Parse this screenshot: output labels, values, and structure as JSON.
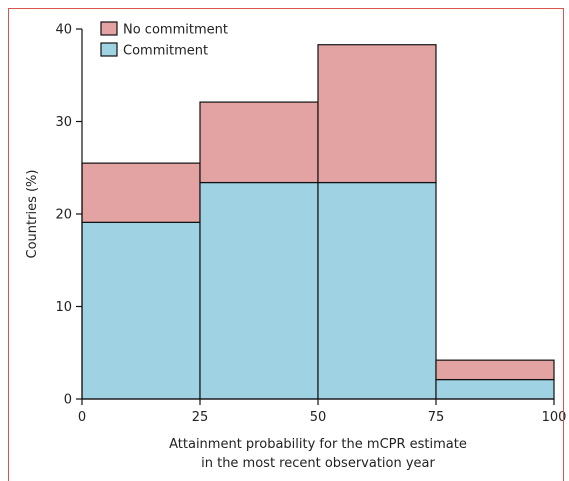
{
  "chart_data": {
    "type": "bar",
    "stacked": true,
    "histogram": true,
    "bin_edges": [
      0,
      25,
      50,
      75,
      100
    ],
    "series": [
      {
        "name": "Commitment",
        "color": "#9fd3e3",
        "values": [
          19.1,
          23.4,
          23.4,
          2.1
        ]
      },
      {
        "name": "No commitment",
        "color": "#e3a3a3",
        "values": [
          6.4,
          8.7,
          14.9,
          2.1
        ]
      }
    ],
    "totals": [
      25.5,
      32.1,
      38.3,
      4.2
    ],
    "xlabel_lines": [
      "Attainment probability for the mCPR estimate",
      "in the most recent observation year"
    ],
    "ylabel": "Countries (%)",
    "xlim": [
      0,
      100
    ],
    "ylim": [
      0,
      40
    ],
    "x_ticks": [
      0,
      25,
      50,
      75,
      100
    ],
    "y_ticks": [
      0,
      10,
      20,
      30,
      40
    ],
    "legend": {
      "placement": "top-left",
      "order": [
        "No commitment",
        "Commitment"
      ]
    },
    "grid": false,
    "frame_color": "#d9534f"
  }
}
